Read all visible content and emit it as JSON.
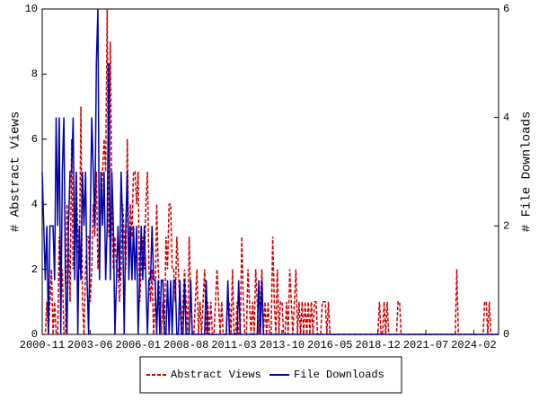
{
  "chart_data": {
    "type": "line",
    "categories": [
      "2000-11",
      null,
      null,
      null,
      null,
      null,
      null,
      null,
      null,
      null,
      null,
      null,
      null,
      null,
      null,
      null,
      null,
      null,
      null,
      null,
      null,
      null,
      null,
      null,
      null,
      null,
      null,
      null,
      null,
      null,
      null,
      "2003-06",
      null,
      null,
      null,
      null,
      null,
      null,
      null,
      null,
      null,
      null,
      null,
      null,
      null,
      null,
      null,
      null,
      null,
      null,
      null,
      null,
      null,
      null,
      null,
      null,
      null,
      null,
      null,
      null,
      null,
      null,
      "2006-01",
      null,
      null,
      null,
      null,
      null,
      null,
      null,
      null,
      null,
      null,
      null,
      null,
      null,
      null,
      null,
      null,
      null,
      null,
      null,
      null,
      null,
      null,
      null,
      null,
      null,
      null,
      null,
      null,
      null,
      null,
      "2008-08",
      null,
      null,
      null,
      null,
      null,
      null,
      null,
      null,
      null,
      null,
      null,
      null,
      null,
      null,
      null,
      null,
      null,
      null,
      null,
      null,
      null,
      null,
      null,
      null,
      null,
      null,
      null,
      null,
      null,
      null,
      "2011-03",
      null,
      null,
      null,
      null,
      null,
      null,
      null,
      null,
      null,
      null,
      null,
      null,
      null,
      null,
      null,
      null,
      null,
      null,
      null,
      null,
      null,
      null,
      null,
      null,
      null,
      null,
      null,
      null,
      null,
      null,
      "2013-10",
      null,
      null,
      null,
      null,
      null,
      null,
      null,
      null,
      null,
      null,
      null,
      null,
      null,
      null,
      null,
      null,
      null,
      null,
      null,
      null,
      null,
      null,
      null,
      null,
      null,
      null,
      null,
      null,
      null,
      null,
      "2016-05",
      null,
      null,
      null,
      null,
      null,
      null,
      null,
      null,
      null,
      null,
      null,
      null,
      null,
      null,
      null,
      null,
      null,
      null,
      null,
      null,
      null,
      null,
      null,
      null,
      null,
      null,
      null,
      null,
      null,
      null,
      "2018-12",
      null,
      null,
      null,
      null,
      null,
      null,
      null,
      null,
      null,
      null,
      null,
      null,
      null,
      null,
      null,
      null,
      null,
      null,
      null,
      null,
      null,
      null,
      null,
      null,
      null,
      null,
      null,
      null,
      null,
      null,
      "2021-07",
      null,
      null,
      null,
      null,
      null,
      null,
      null,
      null,
      null,
      null,
      null,
      null,
      null,
      null,
      null,
      null,
      null,
      null,
      null,
      null,
      null,
      null,
      null,
      null,
      null,
      null,
      null,
      null,
      null,
      null,
      "2024-02",
      null,
      null,
      null,
      null,
      null,
      null,
      null,
      null,
      null,
      null,
      null,
      null,
      null,
      null,
      null,
      null
    ],
    "series": [
      {
        "name": "Abstract Views",
        "color": "#cc0000",
        "dashed": true,
        "axis": "y",
        "values": [
          0,
          0,
          0,
          1,
          0,
          1,
          2,
          0,
          1,
          0,
          0,
          3,
          1,
          2,
          0,
          0,
          4,
          3,
          1,
          6,
          2,
          3,
          5,
          3,
          2,
          7,
          1,
          0,
          2,
          3,
          3,
          1,
          2,
          4,
          3,
          5,
          2,
          3,
          4,
          5,
          6,
          5,
          10,
          3,
          9,
          4,
          2,
          3,
          2,
          2,
          1,
          2,
          4,
          3,
          2,
          6,
          2,
          4,
          3,
          5,
          5,
          4,
          5,
          1,
          2,
          3,
          2,
          4,
          5,
          2,
          1,
          2,
          0,
          1,
          4,
          2,
          1,
          0,
          1,
          0,
          3,
          2,
          4,
          4,
          2,
          2,
          1,
          3,
          2,
          1,
          0,
          1,
          2,
          1,
          0,
          3,
          1,
          0,
          0,
          1,
          2,
          0,
          1,
          0,
          1,
          2,
          0,
          1,
          0,
          1,
          0,
          0,
          1,
          2,
          1,
          0,
          1,
          0,
          0,
          0,
          1,
          1,
          0,
          2,
          0,
          0,
          1,
          0,
          0,
          3,
          1,
          0,
          0,
          2,
          1,
          0,
          1,
          0,
          2,
          1,
          0,
          1,
          2,
          0,
          1,
          0,
          1,
          0,
          0,
          3,
          1,
          0,
          2,
          0,
          1,
          1,
          0,
          0,
          1,
          0,
          2,
          1,
          0,
          1,
          2,
          0,
          1,
          0,
          1,
          0,
          1,
          0,
          1,
          0,
          1,
          0,
          1,
          1,
          0,
          0,
          0,
          1,
          1,
          1,
          0,
          1,
          0,
          0,
          0,
          0,
          0,
          0,
          0,
          0,
          0,
          0,
          0,
          0,
          0,
          0,
          0,
          0,
          0,
          0,
          0,
          0,
          0,
          0,
          0,
          0,
          0,
          0,
          0,
          0,
          0,
          0,
          0,
          0,
          1,
          0,
          0,
          1,
          0,
          1,
          0,
          0,
          0,
          0,
          0,
          0,
          1,
          1,
          0,
          0,
          0,
          0,
          0,
          0,
          0,
          0,
          0,
          0,
          0,
          0,
          0,
          0,
          0,
          0,
          0,
          0,
          0,
          0,
          0,
          0,
          0,
          0,
          0,
          0,
          0,
          0,
          0,
          0,
          0,
          0,
          0,
          0,
          0,
          0,
          2,
          0,
          0,
          0,
          0,
          0,
          0,
          0,
          0,
          0,
          0,
          0,
          0,
          0,
          0,
          0,
          0,
          0,
          1,
          1,
          0,
          1,
          0,
          0,
          0,
          0,
          0,
          0
        ]
      },
      {
        "name": "File Downloads",
        "color": "#0000aa",
        "dashed": false,
        "axis": "y2",
        "values": [
          3,
          2,
          1,
          2,
          0,
          2,
          2,
          2,
          1,
          4,
          2,
          4,
          0,
          3,
          4,
          1,
          0,
          2,
          3,
          3,
          4,
          1,
          3,
          0,
          2,
          1,
          3,
          2,
          3,
          1,
          0,
          2,
          4,
          3,
          2,
          5,
          6,
          1,
          3,
          2,
          3,
          1,
          2,
          5,
          1,
          3,
          2,
          0,
          1,
          2,
          1,
          3,
          2,
          0,
          2,
          3,
          1,
          2,
          1,
          2,
          1,
          2,
          0,
          1,
          2,
          1,
          2,
          1,
          0,
          1,
          1,
          2,
          1,
          1,
          0,
          1,
          0,
          1,
          1,
          0,
          0,
          1,
          0,
          1,
          0,
          1,
          1,
          0,
          0,
          1,
          0,
          0,
          1,
          0,
          0,
          0,
          1,
          0,
          0,
          0,
          0,
          0,
          0,
          0,
          0,
          0,
          1,
          0,
          0,
          0,
          0,
          0,
          0,
          0,
          0,
          0,
          0,
          0,
          0,
          0,
          1,
          0,
          0,
          0,
          0,
          0,
          0,
          1,
          0,
          0,
          0,
          0,
          0,
          0,
          0,
          0,
          0,
          0,
          0,
          0,
          1,
          0,
          1,
          0,
          0,
          0,
          0,
          0,
          0,
          0,
          0,
          0,
          0,
          0,
          0,
          0,
          0,
          0,
          0,
          0,
          0,
          0,
          0,
          0,
          0,
          0,
          0,
          0,
          0,
          0,
          0,
          0,
          0,
          0,
          0,
          0,
          0,
          0,
          0,
          0,
          0,
          0,
          0,
          0,
          0,
          0,
          0,
          0,
          0,
          0,
          0,
          0,
          0,
          0,
          0,
          0,
          0,
          0,
          0,
          0,
          0,
          0,
          0,
          0,
          0,
          0,
          0,
          0,
          0,
          0,
          0,
          0,
          0,
          0,
          0,
          0,
          0,
          0,
          0,
          0,
          0,
          0,
          0,
          0,
          0,
          0,
          0,
          0,
          0,
          0,
          0,
          0,
          0,
          0,
          0,
          0,
          0,
          0,
          0,
          0,
          0,
          0,
          0,
          0,
          0,
          0,
          0,
          0,
          0,
          0,
          0,
          0,
          0,
          0,
          0,
          0,
          0,
          0,
          0,
          0,
          0,
          0,
          0,
          0,
          0,
          0,
          0,
          0,
          0,
          0,
          0,
          0,
          0,
          0,
          0,
          0,
          0,
          0,
          0,
          0,
          0,
          0,
          0,
          0,
          0,
          0,
          0,
          0,
          0,
          0,
          0,
          0,
          0,
          0,
          0,
          0
        ]
      }
    ],
    "y_label": "# Abstract Views",
    "y2_label": "# File Downloads",
    "ylim": [
      0,
      10
    ],
    "yticks": [
      0,
      2,
      4,
      6,
      8,
      10
    ],
    "y2lim": [
      0,
      6
    ],
    "y2ticks": [
      0,
      2,
      4,
      6
    ],
    "legend": "bottom"
  }
}
